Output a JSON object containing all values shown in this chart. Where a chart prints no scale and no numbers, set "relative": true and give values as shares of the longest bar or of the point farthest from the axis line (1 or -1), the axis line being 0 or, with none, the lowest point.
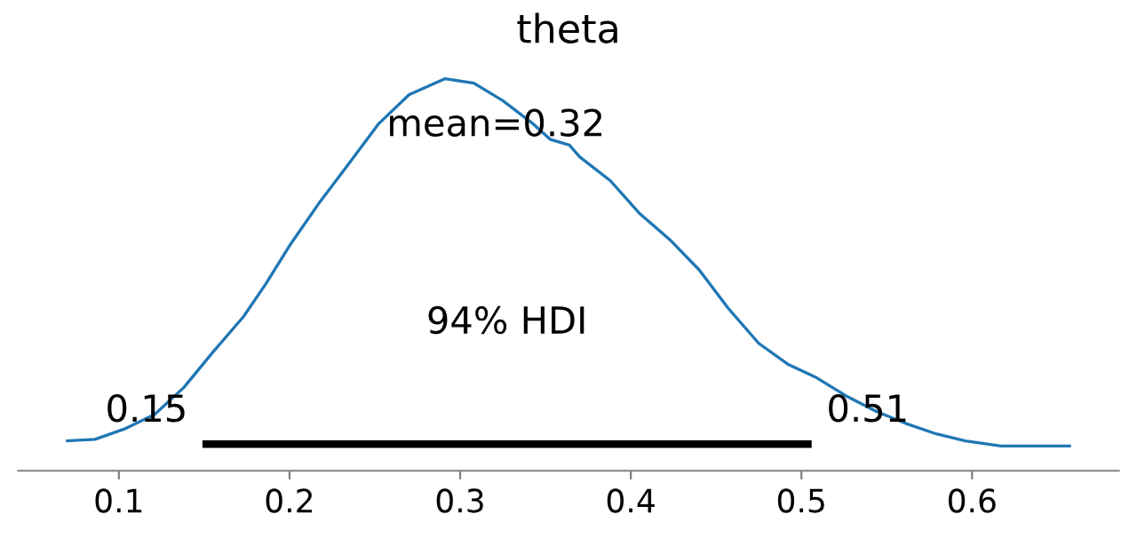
{
  "chart_data": {
    "type": "line",
    "title": "theta",
    "relative": true,
    "xlim": [
      0.041,
      0.686
    ],
    "xticks": [
      0.1,
      0.2,
      0.3,
      0.4,
      0.5,
      0.6
    ],
    "grid": false,
    "legend": false,
    "marker": "none",
    "line_style": "solid",
    "tick_labels": "x",
    "series": [
      {
        "color": "#1f77b4",
        "x": [
          0.069,
          0.086,
          0.103,
          0.121,
          0.138,
          0.155,
          0.173,
          0.186,
          0.2,
          0.218,
          0.235,
          0.252,
          0.27,
          0.291,
          0.308,
          0.325,
          0.343,
          0.353,
          0.364,
          0.37,
          0.388,
          0.405,
          0.423,
          0.44,
          0.457,
          0.475,
          0.492,
          0.509,
          0.527,
          0.544,
          0.561,
          0.579,
          0.596,
          0.617,
          0.638,
          0.658
        ],
        "values": [
          0.076,
          0.08,
          0.106,
          0.144,
          0.212,
          0.302,
          0.393,
          0.476,
          0.574,
          0.687,
          0.785,
          0.884,
          0.959,
          1,
          0.989,
          0.944,
          0.884,
          0.845,
          0.831,
          0.801,
          0.74,
          0.657,
          0.589,
          0.513,
          0.415,
          0.325,
          0.272,
          0.237,
          0.189,
          0.151,
          0.121,
          0.094,
          0.076,
          0.063,
          0.063,
          0.063
        ]
      },
      {
        "color": "#000000",
        "x": [
          0.149,
          0.506
        ],
        "values": [
          0.068,
          0.068
        ]
      }
    ],
    "annotations": [
      "mean=0.32",
      "94% HDI",
      {
        "text": "0.15",
        "x": 0.149,
        "y": 0.068
      },
      {
        "text": "0.51",
        "x": 0.506,
        "y": 0.068
      }
    ]
  }
}
